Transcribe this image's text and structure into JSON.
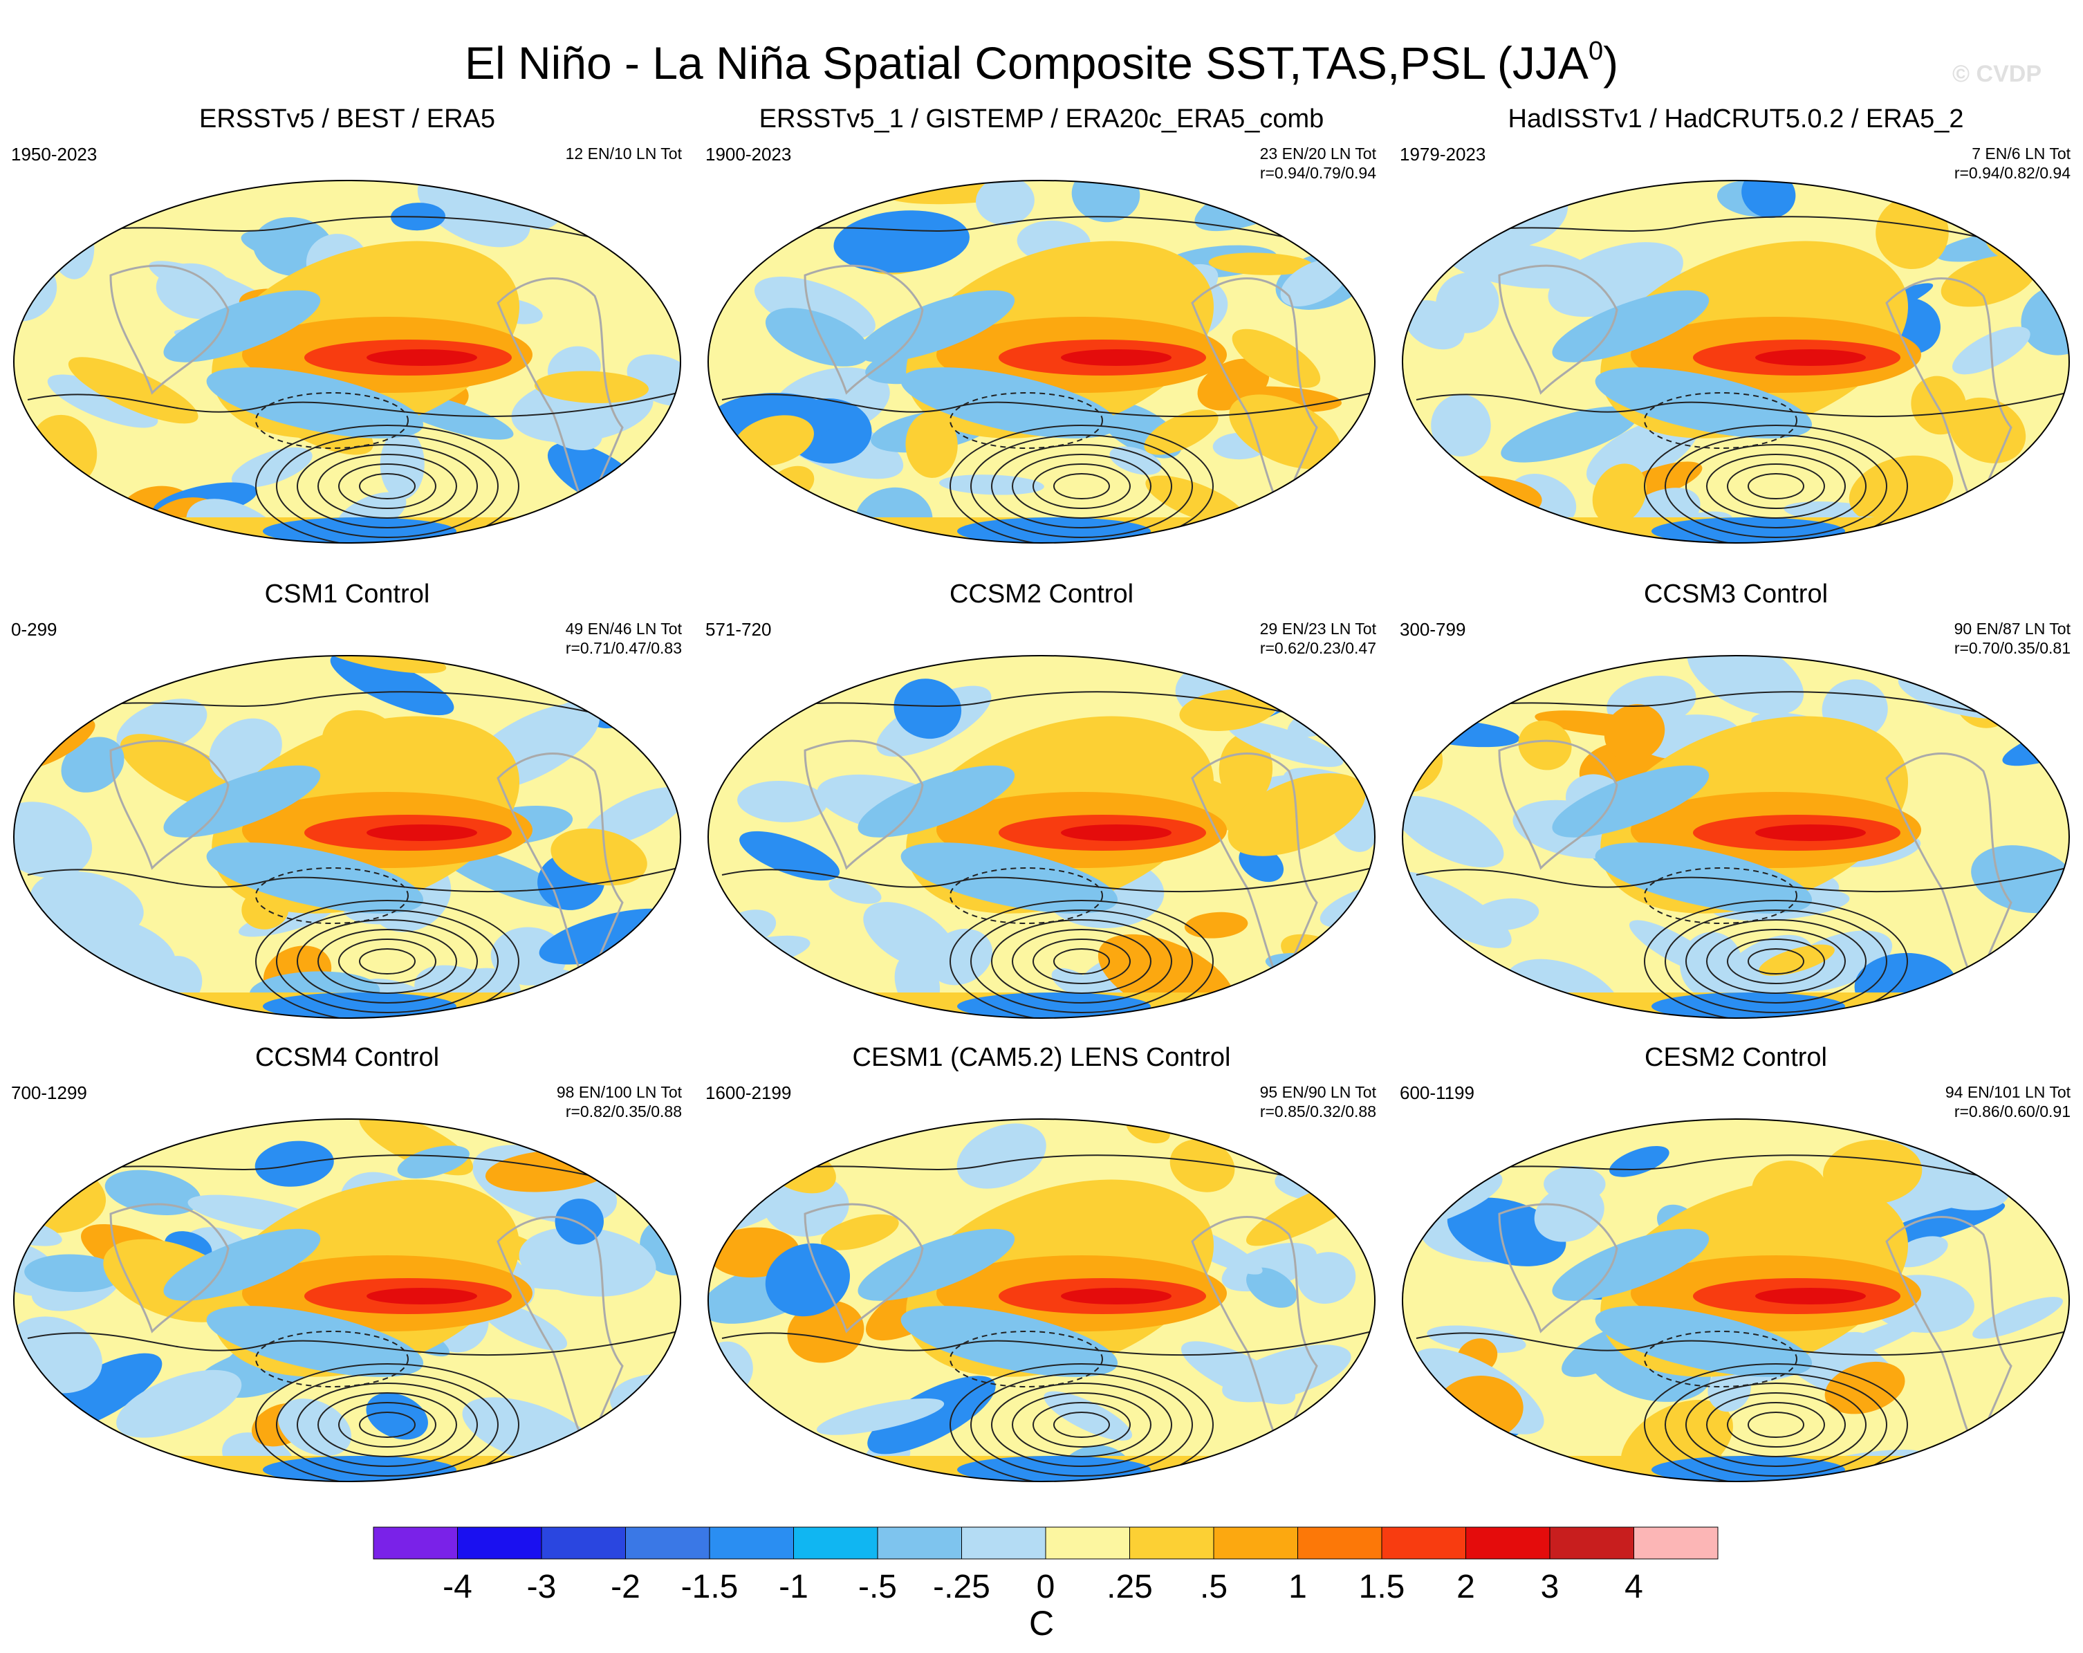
{
  "title": {
    "main": "El Niño - La Niña Spatial Composite SST,TAS,PSL (JJA",
    "sup": "0",
    "close": ")"
  },
  "watermark": "© CVDP",
  "panels": [
    {
      "title": "ERSSTv5 / BEST / ERA5",
      "period": "1950-2023",
      "counts": "12 EN/10 LN Tot",
      "corr": ""
    },
    {
      "title": "ERSSTv5_1 / GISTEMP / ERA20c_ERA5_comb",
      "period": "1900-2023",
      "counts": "23 EN/20 LN Tot",
      "corr": "r=0.94/0.79/0.94"
    },
    {
      "title": "HadISSTv1 / HadCRUT5.0.2 / ERA5_2",
      "period": "1979-2023",
      "counts": "7 EN/6 LN Tot",
      "corr": "r=0.94/0.82/0.94"
    },
    {
      "title": "CSM1 Control",
      "period": "0-299",
      "counts": "49 EN/46 LN Tot",
      "corr": "r=0.71/0.47/0.83"
    },
    {
      "title": "CCSM2 Control",
      "period": "571-720",
      "counts": "29 EN/23 LN Tot",
      "corr": "r=0.62/0.23/0.47"
    },
    {
      "title": "CCSM3 Control",
      "period": "300-799",
      "counts": "90 EN/87 LN Tot",
      "corr": "r=0.70/0.35/0.81"
    },
    {
      "title": "CCSM4 Control",
      "period": "700-1299",
      "counts": "98 EN/100 LN Tot",
      "corr": "r=0.82/0.35/0.88"
    },
    {
      "title": "CESM1 (CAM5.2) LENS Control",
      "period": "1600-2199",
      "counts": "95 EN/90 LN Tot",
      "corr": "r=0.85/0.32/0.88"
    },
    {
      "title": "CESM2 Control",
      "period": "600-1199",
      "counts": "94 EN/101 LN Tot",
      "corr": "r=0.86/0.60/0.91"
    }
  ],
  "colorbar": {
    "colors": [
      "#7a22e8",
      "#1a10f0",
      "#2a46e0",
      "#3a78e6",
      "#2a8ef2",
      "#10b6f2",
      "#7ec4ee",
      "#b4dcf4",
      "#fcf6a0",
      "#fcd034",
      "#fca810",
      "#fc7808",
      "#f83c10",
      "#e40c0c",
      "#c81e1e",
      "#fcb6b6"
    ],
    "labels": [
      "-4",
      "-3",
      "-2",
      "-1.5",
      "-1",
      "-.5",
      "-.25",
      "0",
      ".25",
      ".5",
      "1",
      "1.5",
      "2",
      "3",
      "4"
    ],
    "units": "C"
  }
}
